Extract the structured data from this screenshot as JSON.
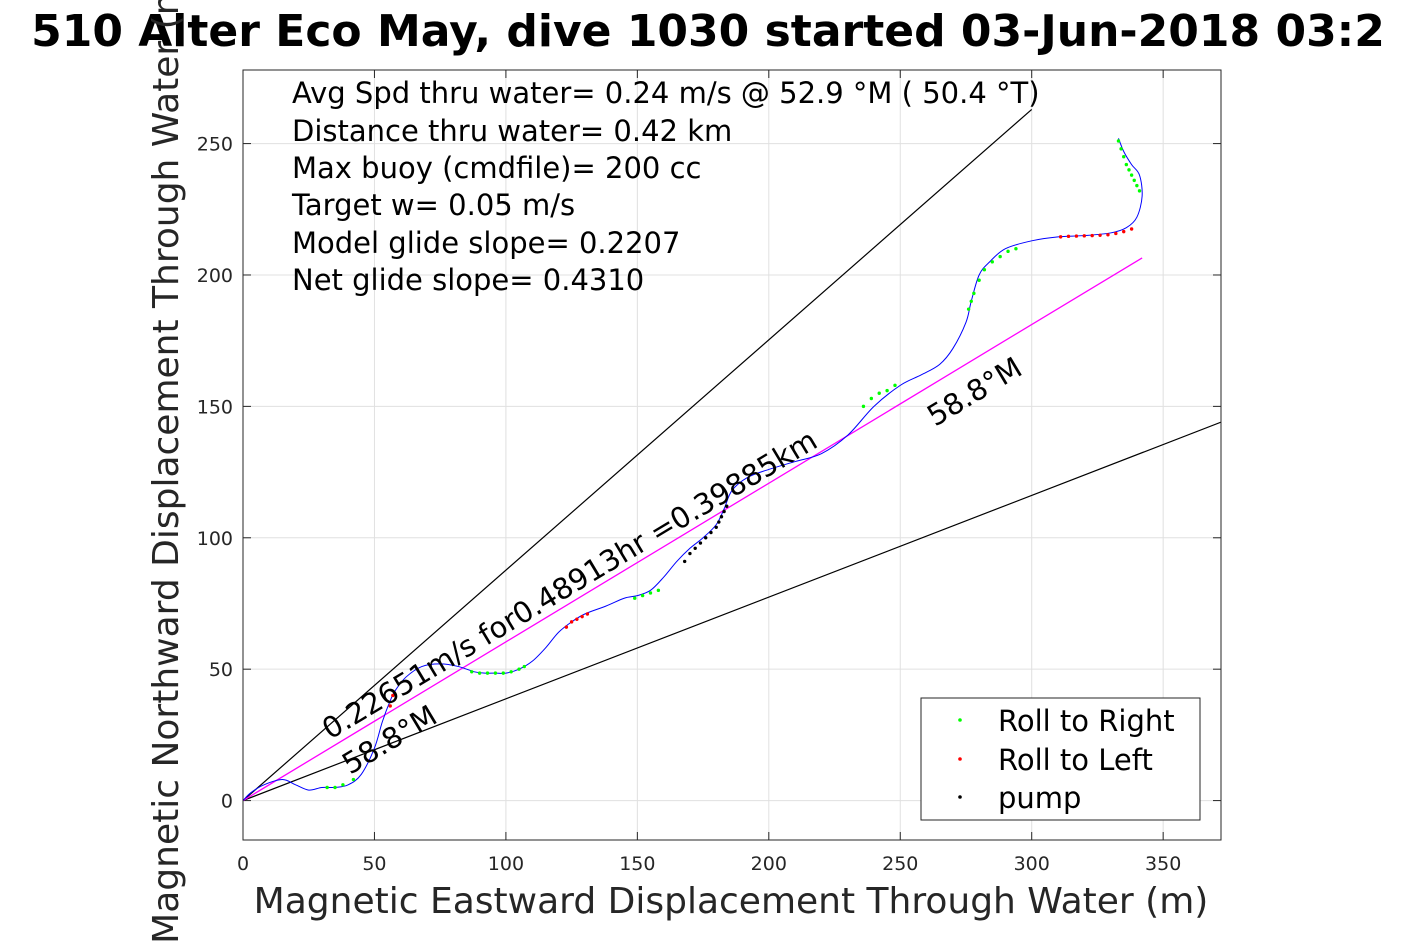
{
  "chart_data": {
    "type": "scatter",
    "title": "510 Alter Eco May, dive 1030 started 03-Jun-2018 03:2",
    "xlabel": "Magnetic Eastward Displacement Through Water (m)",
    "ylabel": "Magnetic Northward Displacement Through Water (m)",
    "xlim": [
      0,
      372
    ],
    "ylim": [
      -15,
      278
    ],
    "x_ticks": [
      0,
      50,
      100,
      150,
      200,
      250,
      300,
      350
    ],
    "y_ticks": [
      0,
      50,
      100,
      150,
      200,
      250
    ],
    "grid": true,
    "legend_position": "bottom-right",
    "annotations": [
      "Avg Spd thru water=  0.24 m/s @  52.9 °M ( 50.4 °T)",
      "Distance thru water=  0.42 km",
      "Max buoy (cmdfile)= 200 cc",
      "Target w= 0.05 m/s",
      "Model glide slope= 0.2207",
      "Net glide slope= 0.4310"
    ],
    "rotated_labels": {
      "track_speed": "0.22651m/s for0.48913hr =0.39885km",
      "heading_near": "58.8°M",
      "heading_far": "58.8°M"
    },
    "legend": [
      "Roll to Right",
      "Roll to Left",
      "pump"
    ],
    "colors": {
      "track": "#0000ff",
      "roll_right": "#00ff00",
      "roll_left": "#ff0000",
      "pump": "#000000",
      "heading_line": "#ff00ff",
      "cone_lines": "#000000",
      "grid": "#e0e0e0"
    },
    "track": {
      "x": [
        0,
        3,
        8,
        15,
        20,
        25,
        30,
        35,
        40,
        45,
        50,
        53,
        56,
        58,
        62,
        68,
        75,
        82,
        88,
        92,
        96,
        100,
        105,
        110,
        115,
        120,
        125,
        130,
        138,
        145,
        150,
        155,
        160,
        165,
        170,
        175,
        180,
        183,
        186,
        192,
        200,
        210,
        220,
        230,
        240,
        250,
        258,
        265,
        270,
        275,
        277,
        280,
        284,
        290,
        300,
        310,
        320,
        330,
        336,
        340,
        342,
        341,
        338,
        335,
        333
      ],
      "y": [
        0,
        3,
        6,
        8,
        6,
        4,
        5,
        5,
        6,
        10,
        20,
        30,
        38,
        42,
        47,
        51,
        52,
        51,
        49,
        48.5,
        48.5,
        48.5,
        50,
        53,
        58,
        64,
        68,
        71,
        74,
        77,
        78,
        80,
        85,
        91,
        96,
        100,
        105,
        111,
        118,
        123,
        126,
        129,
        132,
        139,
        150,
        158,
        162,
        166,
        172,
        182,
        190,
        200,
        205,
        210,
        213,
        214.5,
        215,
        216,
        218,
        222,
        230,
        238,
        242,
        247,
        252
      ]
    },
    "heading_line": {
      "x": [
        0,
        342
      ],
      "y": [
        0,
        206.5
      ]
    },
    "cone_lines": [
      {
        "x": [
          0,
          300
        ],
        "y": [
          0,
          263
        ]
      },
      {
        "x": [
          0,
          372
        ],
        "y": [
          0,
          144
        ]
      }
    ],
    "roll_right_points": {
      "x": [
        32,
        35,
        38,
        42,
        87,
        90,
        93,
        96,
        99,
        102,
        105,
        107,
        149,
        152,
        155,
        158,
        236,
        239,
        242,
        245,
        248,
        276,
        277,
        278,
        280,
        282,
        285,
        288,
        291,
        294,
        333,
        334,
        335,
        336,
        337,
        338,
        339,
        340,
        341
      ],
      "y": [
        5,
        5,
        6,
        8,
        49,
        48.5,
        48.5,
        48.5,
        48.5,
        49,
        50,
        51,
        77,
        78,
        79,
        80,
        150,
        153,
        155,
        156,
        158,
        187,
        190,
        193,
        198,
        202,
        205,
        207,
        209,
        210,
        251,
        248,
        245,
        242,
        240,
        238,
        236,
        234,
        232
      ]
    },
    "roll_left_points": {
      "x": [
        56,
        57,
        123,
        125,
        127,
        129,
        131,
        311,
        314,
        317,
        320,
        323,
        326,
        329,
        332,
        335,
        338
      ],
      "y": [
        36,
        40,
        66,
        68,
        69,
        70,
        71,
        214.5,
        214.7,
        214.8,
        214.9,
        215,
        215.1,
        215.3,
        215.8,
        216.5,
        217.5
      ]
    },
    "pump_points": {
      "x": [
        168,
        170,
        172,
        174,
        176,
        178,
        180,
        181,
        182,
        183,
        184
      ],
      "y": [
        91,
        94,
        96,
        98,
        100,
        102,
        104,
        106,
        108,
        110,
        112
      ]
    }
  }
}
